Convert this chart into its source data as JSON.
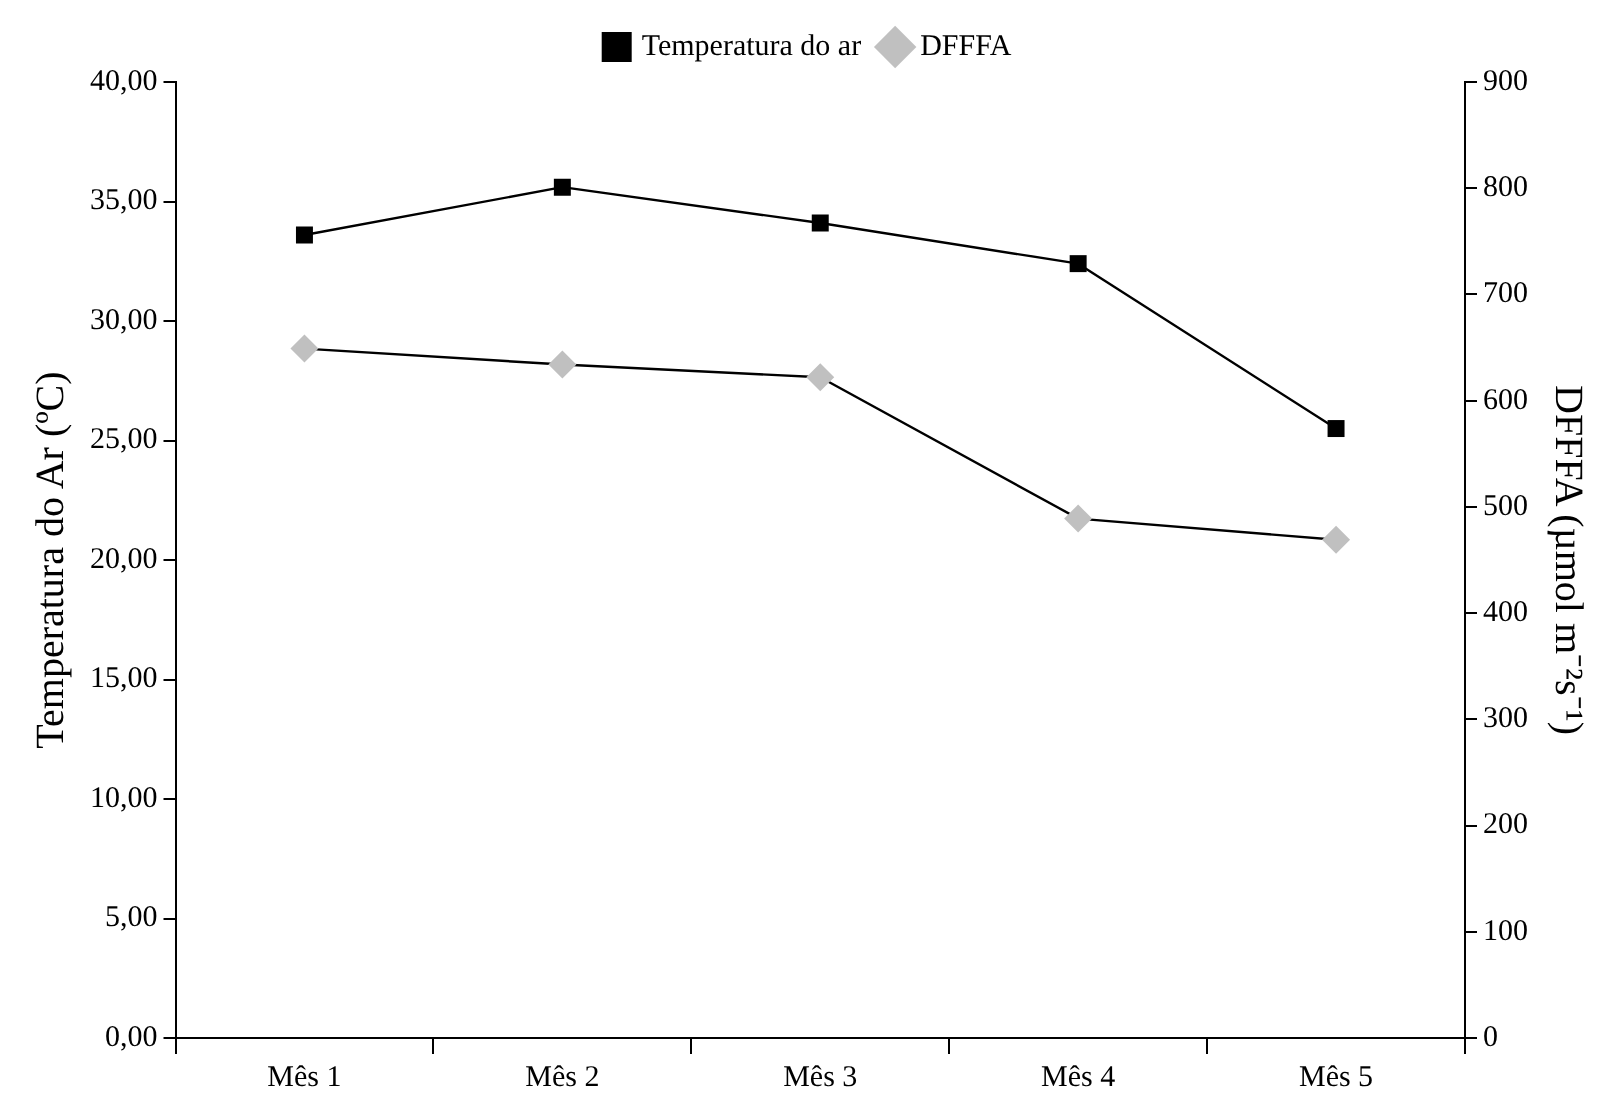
{
  "chart_data": {
    "type": "line",
    "categories": [
      "Mês 1",
      "Mês 2",
      "Mês 3",
      "Mês 4",
      "Mês 5"
    ],
    "ylabel": "Temperatura do Ar (ºC)",
    "y2label": "DFFFA (µmol m⁻²s⁻¹)",
    "series": [
      {
        "name": "Temperatura do ar",
        "color": "#000000",
        "marker": "square",
        "values": [
          33.6,
          35.6,
          34.1,
          32.4,
          25.5
        ]
      },
      {
        "name": "DFFFA",
        "color": "#c0c0c0",
        "marker": "diamond",
        "axis": "y2",
        "values": [
          649,
          634,
          622,
          489,
          469
        ]
      }
    ],
    "ylim": [
      0,
      40
    ],
    "yticks": [
      {
        "value": 0,
        "label": "0,00"
      },
      {
        "value": 5,
        "label": "5,00"
      },
      {
        "value": 10,
        "label": "10,00"
      },
      {
        "value": 15,
        "label": "15,00"
      },
      {
        "value": 20,
        "label": "20,00"
      },
      {
        "value": 25,
        "label": "25,00"
      },
      {
        "value": 30,
        "label": "30,00"
      },
      {
        "value": 35,
        "label": "35,00"
      },
      {
        "value": 40,
        "label": "40,00"
      }
    ],
    "y2lim": [
      0,
      900
    ],
    "y2ticks": [
      0,
      100,
      200,
      300,
      400,
      500,
      600,
      700,
      800,
      900
    ],
    "grid": false,
    "legend": "top",
    "line_style": "solid"
  }
}
